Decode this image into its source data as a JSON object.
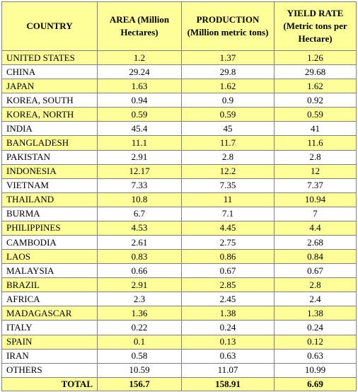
{
  "headers": {
    "country": "COUNTRY",
    "area": "AREA (Million Hectares)",
    "production": "PRODUCTION (Million metric tons)",
    "yield": "YIELD RATE (Metric tons per Hectare)"
  },
  "rows": [
    {
      "country": "UNITED STATES",
      "area": "1.2",
      "production": "1.37",
      "yield": "1.26",
      "highlight": true
    },
    {
      "country": "CHINA",
      "area": "29.24",
      "production": "29.8",
      "yield": "29.68",
      "highlight": false
    },
    {
      "country": "JAPAN",
      "area": "1.63",
      "production": "1.62",
      "yield": "1.62",
      "highlight": true
    },
    {
      "country": "KOREA, SOUTH",
      "area": "0.94",
      "production": "0.9",
      "yield": "0.92",
      "highlight": false
    },
    {
      "country": "KOREA, NORTH",
      "area": "0.59",
      "production": "0.59",
      "yield": "0.59",
      "highlight": true
    },
    {
      "country": "INDIA",
      "area": "45.4",
      "production": "45",
      "yield": "41",
      "highlight": false
    },
    {
      "country": "BANGLADESH",
      "area": "11.1",
      "production": "11.7",
      "yield": "11.6",
      "highlight": true
    },
    {
      "country": "PAKISTAN",
      "area": "2.91",
      "production": "2.8",
      "yield": "2.8",
      "highlight": false
    },
    {
      "country": "INDONESIA",
      "area": "12.17",
      "production": "12.2",
      "yield": "12",
      "highlight": true
    },
    {
      "country": "VIETNAM",
      "area": "7.33",
      "production": "7.35",
      "yield": "7.37",
      "highlight": false
    },
    {
      "country": "THAILAND",
      "area": "10.8",
      "production": "11",
      "yield": "10.94",
      "highlight": true
    },
    {
      "country": "BURMA",
      "area": "6.7",
      "production": "7.1",
      "yield": "7",
      "highlight": false
    },
    {
      "country": "PHILIPPINES",
      "area": "4.53",
      "production": "4.45",
      "yield": "4.4",
      "highlight": true
    },
    {
      "country": "CAMBODIA",
      "area": "2.61",
      "production": "2.75",
      "yield": "2.68",
      "highlight": false
    },
    {
      "country": "LAOS",
      "area": "0.83",
      "production": "0.86",
      "yield": "0.84",
      "highlight": true
    },
    {
      "country": "MALAYSIA",
      "area": "0.66",
      "production": "0.67",
      "yield": "0.67",
      "highlight": false
    },
    {
      "country": "BRAZIL",
      "area": "2.91",
      "production": "2.85",
      "yield": "2.8",
      "highlight": true
    },
    {
      "country": "AFRICA",
      "area": "2.3",
      "production": "2.45",
      "yield": "2.4",
      "highlight": false
    },
    {
      "country": "MADAGASCAR",
      "area": "1.36",
      "production": "1.38",
      "yield": "1.38",
      "highlight": true
    },
    {
      "country": "ITALY",
      "area": "0.22",
      "production": "0.24",
      "yield": "0.24",
      "highlight": false
    },
    {
      "country": "SPAIN",
      "area": "0.1",
      "production": "0.13",
      "yield": "0.12",
      "highlight": true
    },
    {
      "country": "IRAN",
      "area": "0.58",
      "production": "0.63",
      "yield": "0.63",
      "highlight": false
    },
    {
      "country": "OTHERS",
      "area": "10.59",
      "production": "11.07",
      "yield": "10.99",
      "highlight": false
    }
  ],
  "total": {
    "label": "TOTAL",
    "area": "156.7",
    "production": "158.91",
    "yield": "6.69"
  },
  "colors": {
    "highlight": "#ffff99",
    "border": "#808080"
  }
}
